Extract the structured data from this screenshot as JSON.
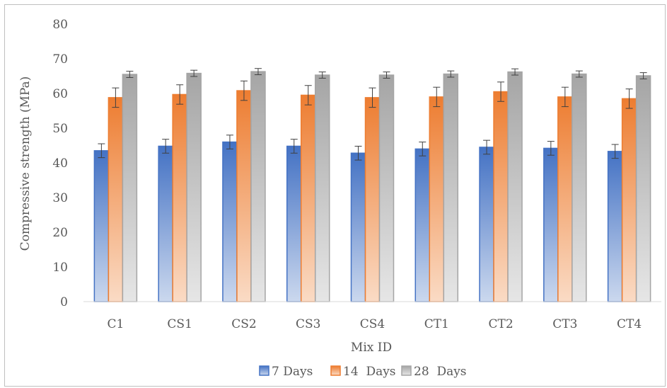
{
  "chart_data": {
    "type": "bar",
    "title": "",
    "xlabel": "Mix ID",
    "ylabel": "Compressive strength (MPa)",
    "ylim": [
      0,
      80
    ],
    "yticks": [
      0,
      10,
      20,
      30,
      40,
      50,
      60,
      70,
      80
    ],
    "grid": false,
    "legend_position": "bottom",
    "categories": [
      "C1",
      "CS1",
      "CS2",
      "CS3",
      "CS4",
      "CT1",
      "CT2",
      "CT3",
      "CT4"
    ],
    "series": [
      {
        "name": "7 Days",
        "color": "#4472c4",
        "values": [
          43.5,
          44.8,
          46.0,
          44.8,
          42.8,
          44.0,
          44.5,
          44.2,
          43.3
        ],
        "errors": [
          2.0,
          2.0,
          2.0,
          2.0,
          2.0,
          2.0,
          2.0,
          2.0,
          2.0
        ]
      },
      {
        "name": "14  Days",
        "color": "#ed7d31",
        "values": [
          58.8,
          59.7,
          60.8,
          59.5,
          58.8,
          59.0,
          60.5,
          59.0,
          58.5
        ],
        "errors": [
          2.8,
          2.8,
          2.8,
          2.8,
          2.8,
          2.8,
          2.8,
          2.8,
          2.8
        ]
      },
      {
        "name": "28  Days",
        "color": "#a5a5a5",
        "values": [
          65.5,
          65.8,
          66.3,
          65.3,
          65.3,
          65.6,
          66.2,
          65.6,
          65.1
        ],
        "errors": [
          0.9,
          0.9,
          0.9,
          0.9,
          0.9,
          0.9,
          0.9,
          0.9,
          0.9
        ]
      }
    ]
  }
}
